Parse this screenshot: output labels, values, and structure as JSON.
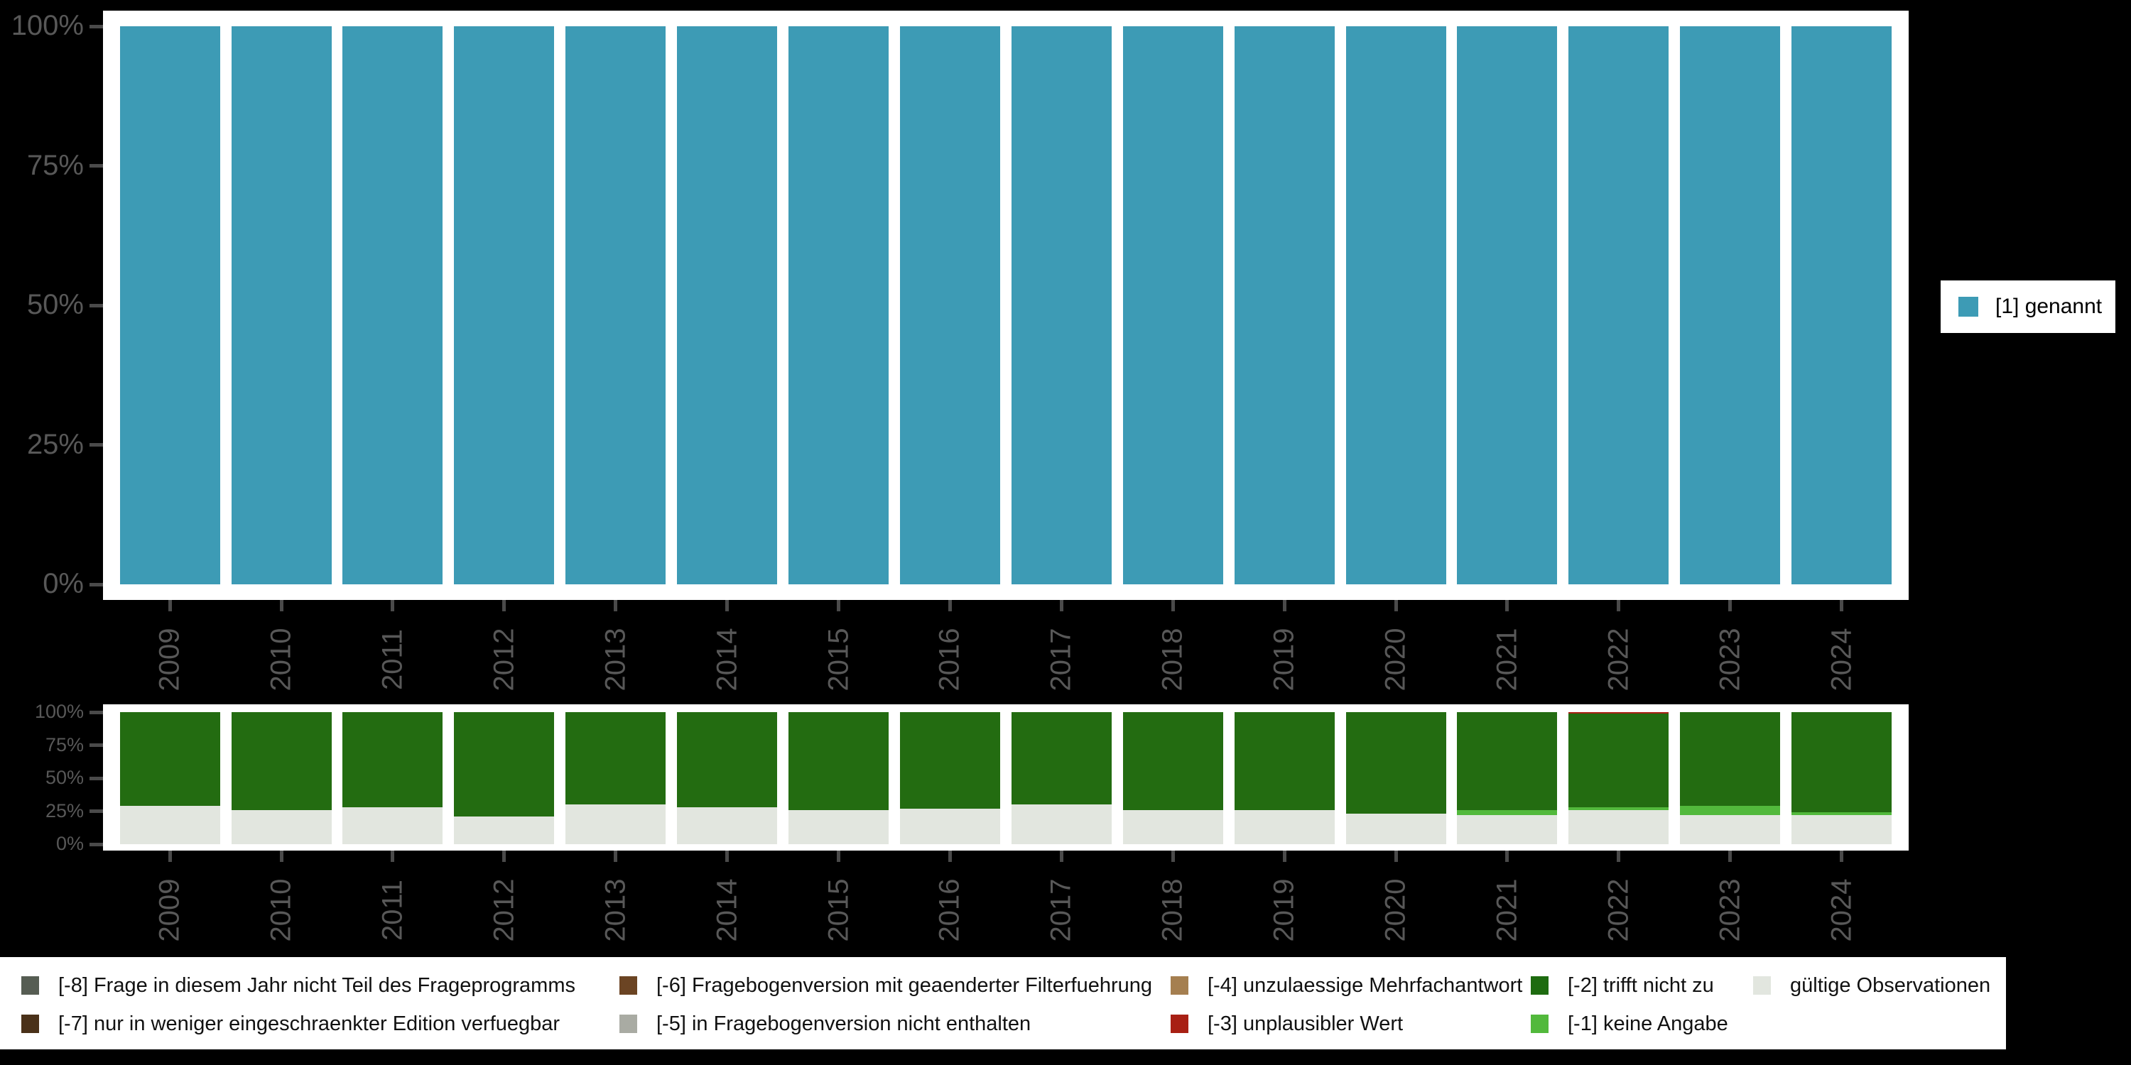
{
  "axis": {
    "tick_color": "#4a4a4a",
    "text_color": "#585858",
    "y_tick_labels": [
      "0%",
      "25%",
      "50%",
      "75%",
      "100%"
    ]
  },
  "top_legend": {
    "label": "[1] genannt",
    "color": "#3d9bb5"
  },
  "bottom_legend": {
    "items": [
      {
        "label": "[-8] Frage in diesem Jahr nicht Teil des Frageprogramms",
        "color": "#565d53"
      },
      {
        "label": "[-7] nur in weniger eingeschraenkter Edition verfuegbar",
        "color": "#4a3119"
      },
      {
        "label": "[-6] Fragebogenversion mit geaenderter Filterfuehrung",
        "color": "#6b4423"
      },
      {
        "label": "[-5] in Fragebogenversion nicht enthalten",
        "color": "#a9aba3"
      },
      {
        "label": "[-4] unzulaessige Mehrfachantwort",
        "color": "#a57f50"
      },
      {
        "label": "[-3] unplausibler Wert",
        "color": "#a82014"
      },
      {
        "label": "[-2] trifft nicht zu",
        "color": "#1e6b10"
      },
      {
        "label": "[-1] keine Angabe",
        "color": "#52b93c"
      },
      {
        "label": "gültige Observationen",
        "color": "#e2e6df"
      }
    ]
  },
  "chart_data": [
    {
      "type": "bar",
      "stacked": true,
      "title": "",
      "categories": [
        "2009",
        "2010",
        "2011",
        "2012",
        "2013",
        "2014",
        "2015",
        "2016",
        "2017",
        "2018",
        "2019",
        "2020",
        "2021",
        "2022",
        "2023",
        "2024"
      ],
      "series": [
        {
          "name": "[1] genannt",
          "color": "#3d9bb5",
          "values": [
            100,
            100,
            100,
            100,
            100,
            100,
            100,
            100,
            100,
            100,
            100,
            100,
            100,
            100,
            100,
            100
          ]
        }
      ],
      "xlabel": "",
      "ylabel": "",
      "ylim": [
        0,
        100
      ],
      "yticks": [
        {
          "label": "0%",
          "value": 0
        },
        {
          "label": "25%",
          "value": 25
        },
        {
          "label": "50%",
          "value": 50
        },
        {
          "label": "75%",
          "value": 75
        },
        {
          "label": "100%",
          "value": 100
        }
      ],
      "grid": false,
      "legend_position": "right",
      "legend_items": [
        "[1] genannt"
      ]
    },
    {
      "type": "bar",
      "stacked": true,
      "title": "",
      "categories": [
        "2009",
        "2010",
        "2011",
        "2012",
        "2013",
        "2014",
        "2015",
        "2016",
        "2017",
        "2018",
        "2019",
        "2020",
        "2021",
        "2022",
        "2023",
        "2024"
      ],
      "series": [
        {
          "name": "gültige Observationen",
          "color": "#e2e6df",
          "values": [
            29,
            26,
            28,
            21,
            30,
            28,
            26,
            27,
            30,
            26,
            26,
            23,
            22,
            26,
            22,
            22
          ]
        },
        {
          "name": "[-1] keine Angabe",
          "color": "#52b93c",
          "values": [
            0,
            0,
            0,
            0,
            0,
            0,
            0,
            0,
            0,
            0,
            0,
            0,
            4,
            2,
            7,
            2
          ]
        },
        {
          "name": "[-2] trifft nicht zu",
          "color": "#236c11",
          "values": [
            71,
            74,
            72,
            79,
            70,
            72,
            74,
            73,
            70,
            74,
            74,
            77,
            74,
            71,
            71,
            76
          ]
        },
        {
          "name": "[-3] unplausibler Wert",
          "color": "#a82014",
          "values": [
            0,
            0,
            0,
            0,
            0,
            0,
            0,
            0,
            0,
            0,
            0,
            0,
            0,
            1,
            0,
            0
          ]
        }
      ],
      "xlabel": "",
      "ylabel": "",
      "ylim": [
        0,
        100
      ],
      "yticks": [
        {
          "label": "0%",
          "value": 0
        },
        {
          "label": "25%",
          "value": 25
        },
        {
          "label": "50%",
          "value": 50
        },
        {
          "label": "75%",
          "value": 75
        },
        {
          "label": "100%",
          "value": 100
        }
      ],
      "grid": false,
      "legend_position": "bottom",
      "legend_items": [
        "[-8] Frage in diesem Jahr nicht Teil des Frageprogramms",
        "[-7] nur in weniger eingeschraenkter Edition verfuegbar",
        "[-6] Fragebogenversion mit geaenderter Filterfuehrung",
        "[-5] in Fragebogenversion nicht enthalten",
        "[-4] unzulaessige Mehrfachantwort",
        "[-3] unplausibler Wert",
        "[-2] trifft nicht zu",
        "[-1] keine Angabe",
        "gültige Observationen"
      ]
    }
  ]
}
